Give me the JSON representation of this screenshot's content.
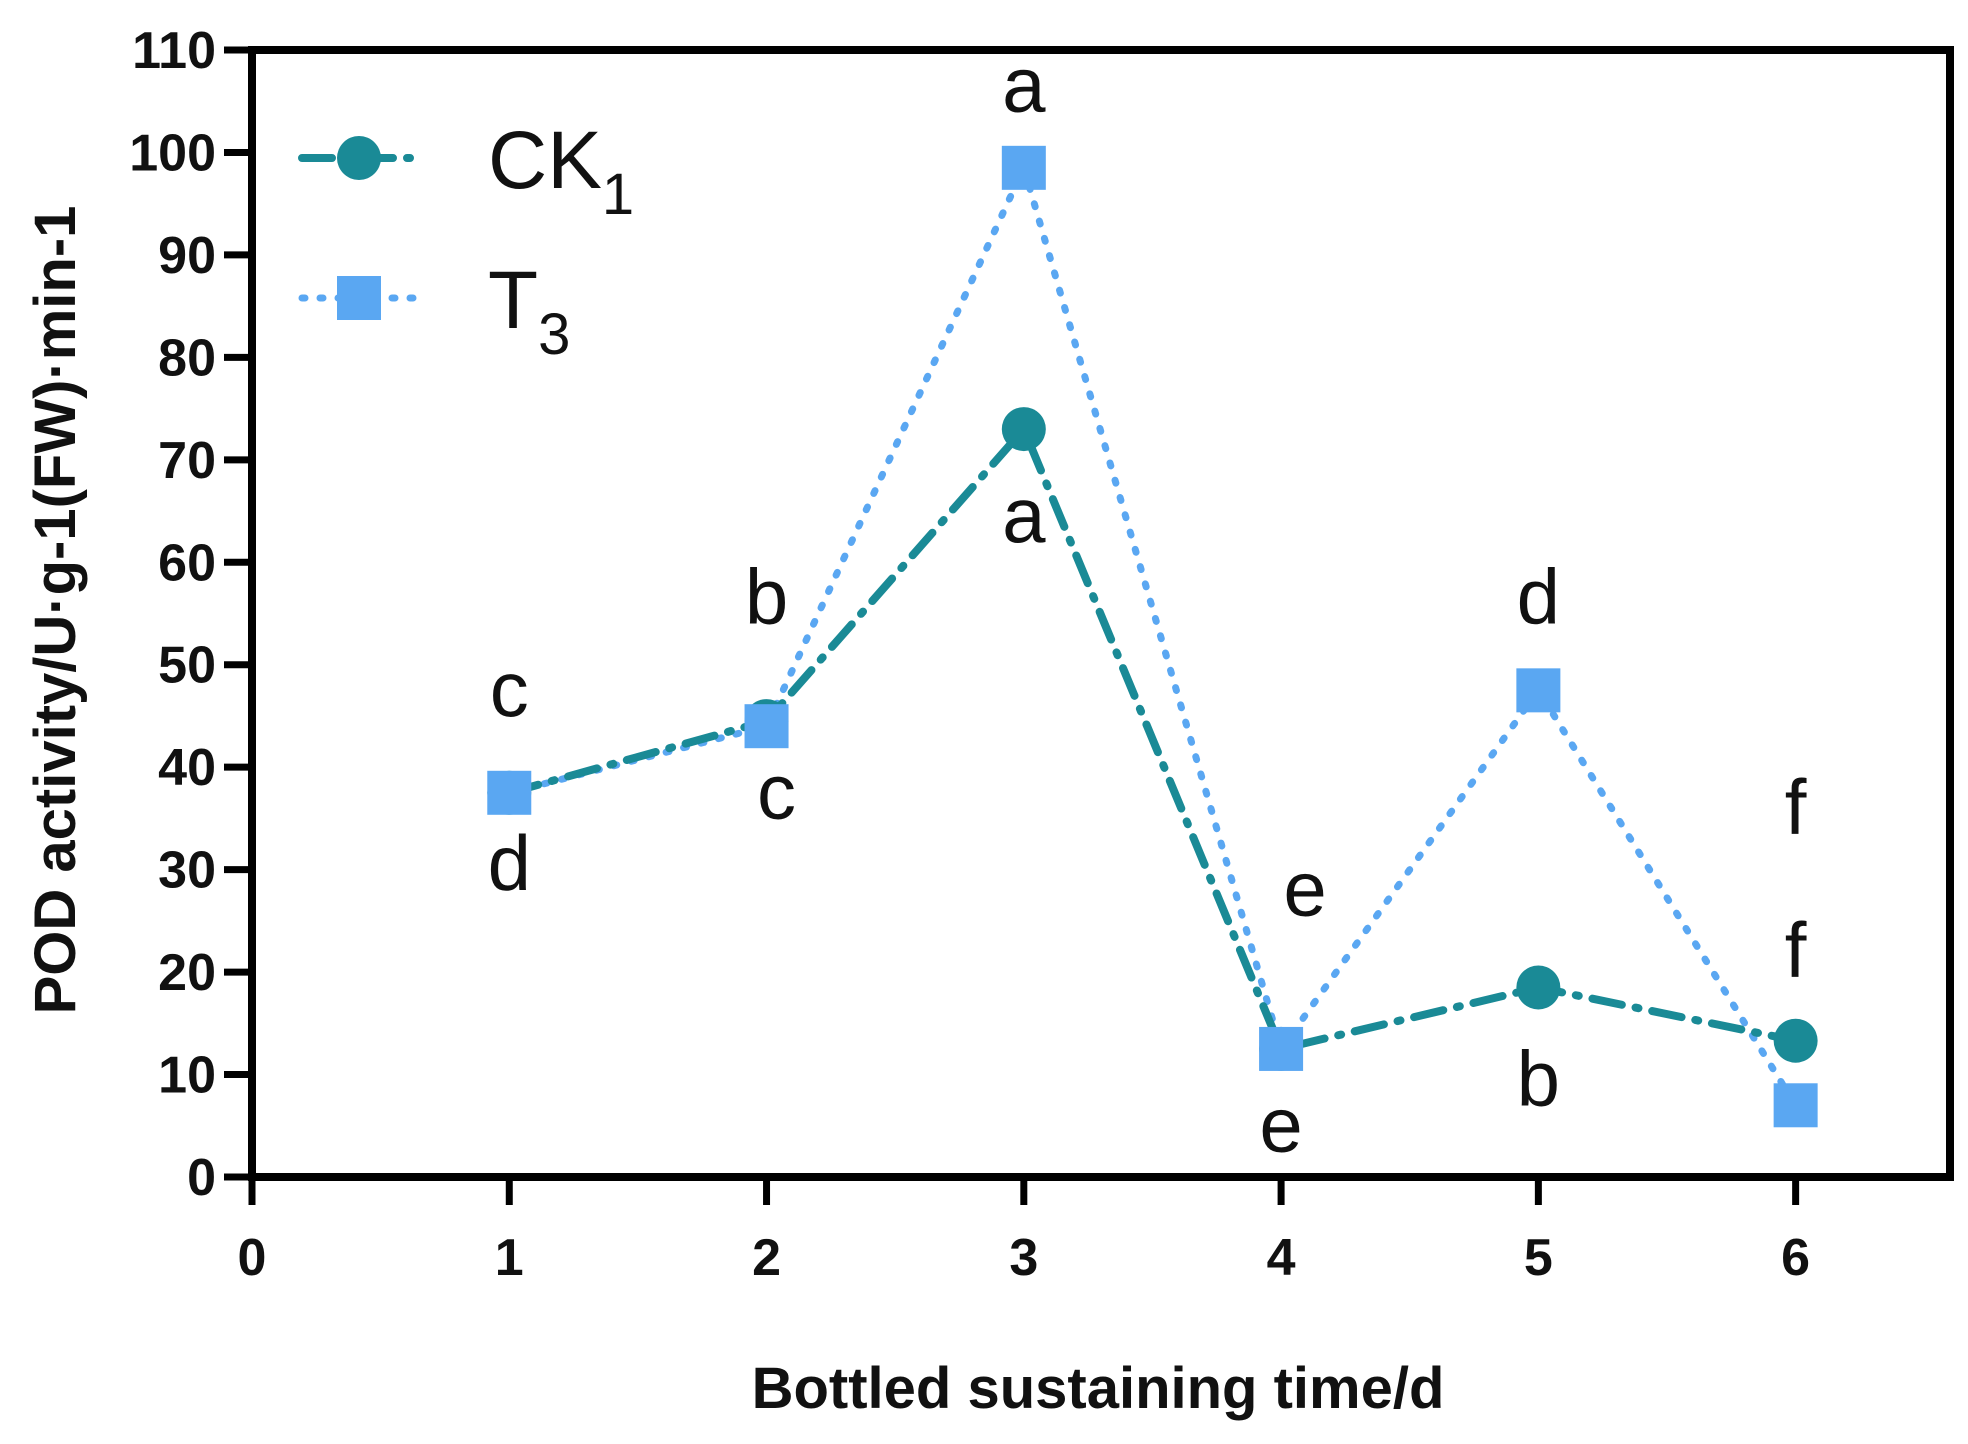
{
  "chart_data": {
    "type": "line",
    "title": "",
    "xlabel": "Bottled sustaining  time/d",
    "ylabel": "POD activity/U·g-1(FW)·min-1",
    "xlim": [
      0,
      6.6
    ],
    "ylim": [
      0,
      110
    ],
    "xticks": [
      0,
      1,
      2,
      3,
      4,
      5,
      6
    ],
    "yticks": [
      0,
      10,
      20,
      30,
      40,
      50,
      60,
      70,
      80,
      90,
      100,
      110
    ],
    "x": [
      1,
      2,
      3,
      4,
      5,
      6
    ],
    "series": [
      {
        "name": "CK",
        "subscript": "1",
        "marker": "circle",
        "line_style": "dash-dot",
        "color": "#1A8A96",
        "values": [
          37.5,
          44.5,
          73,
          12.5,
          18.5,
          13.3
        ],
        "significance": [
          "d",
          "c",
          "a",
          "e",
          "b",
          "f"
        ]
      },
      {
        "name": "T",
        "subscript": "3",
        "marker": "square",
        "line_style": "dotted",
        "color": "#5AA7F2",
        "values": [
          37.5,
          44,
          98.5,
          12.5,
          47.5,
          7
        ],
        "significance": [
          "c",
          "b",
          "a",
          "e",
          "d",
          "f"
        ]
      }
    ],
    "legend_position": "top-left"
  }
}
